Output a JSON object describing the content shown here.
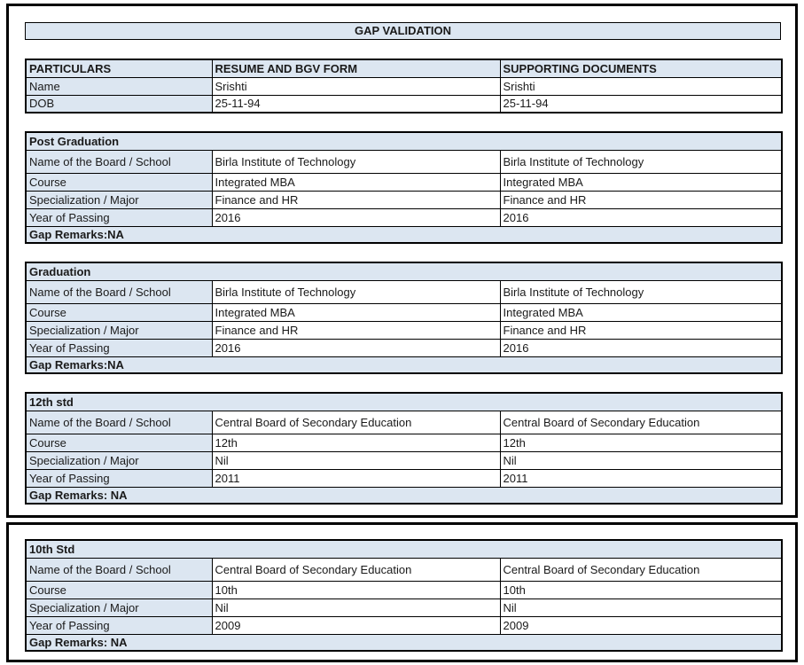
{
  "title": "GAP VALIDATION",
  "colors": {
    "accent_bg": "#dce6f1",
    "border": "#000000",
    "text": "#1a1a1a",
    "page_bg": "#ffffff"
  },
  "particulars_table": {
    "headers": [
      "PARTICULARS",
      "RESUME AND BGV FORM",
      "SUPPORTING DOCUMENTS"
    ],
    "rows": [
      {
        "label": "Name",
        "resume": "Srishti",
        "supporting": "Srishti"
      },
      {
        "label": "DOB",
        "resume": "25-11-94",
        "supporting": "25-11-94"
      }
    ]
  },
  "sections": [
    {
      "heading": "Post Graduation",
      "rows": [
        {
          "label": "Name of the Board / School",
          "resume": "Birla Institute of Technology",
          "supporting": "Birla Institute of Technology"
        },
        {
          "label": "Course",
          "resume": "Integrated MBA",
          "supporting": "Integrated MBA"
        },
        {
          "label": "Specialization / Major",
          "resume": "Finance and HR",
          "supporting": "Finance and HR"
        },
        {
          "label": "Year of Passing",
          "resume": "2016",
          "supporting": "2016"
        }
      ],
      "gap_remarks": "Gap Remarks:NA"
    },
    {
      "heading": "Graduation",
      "rows": [
        {
          "label": "Name of the Board / School",
          "resume": "Birla Institute of Technology",
          "supporting": "Birla Institute of Technology"
        },
        {
          "label": "Course",
          "resume": "Integrated MBA",
          "supporting": "Integrated MBA"
        },
        {
          "label": "Specialization / Major",
          "resume": "Finance and HR",
          "supporting": "Finance and HR"
        },
        {
          "label": "Year of Passing",
          "resume": "2016",
          "supporting": "2016"
        }
      ],
      "gap_remarks": "Gap Remarks:NA"
    },
    {
      "heading": "12th std",
      "rows": [
        {
          "label": "Name of the Board / School",
          "resume": "Central Board of Secondary Education",
          "supporting": "Central Board of Secondary Education"
        },
        {
          "label": "Course",
          "resume": "12th",
          "supporting": "12th"
        },
        {
          "label": "Specialization / Major",
          "resume": "Nil",
          "supporting": "Nil"
        },
        {
          "label": "Year of Passing",
          "resume": "2011",
          "supporting": "2011"
        }
      ],
      "gap_remarks": "Gap Remarks: NA"
    },
    {
      "heading": "10th Std",
      "rows": [
        {
          "label": "Name of the Board / School",
          "resume": "Central Board of Secondary Education",
          "supporting": "Central Board of Secondary Education"
        },
        {
          "label": "Course",
          "resume": "10th",
          "supporting": "10th"
        },
        {
          "label": "Specialization / Major",
          "resume": "Nil",
          "supporting": "Nil"
        },
        {
          "label": "Year of Passing",
          "resume": "2009",
          "supporting": "2009"
        }
      ],
      "gap_remarks": "Gap Remarks: NA"
    }
  ]
}
